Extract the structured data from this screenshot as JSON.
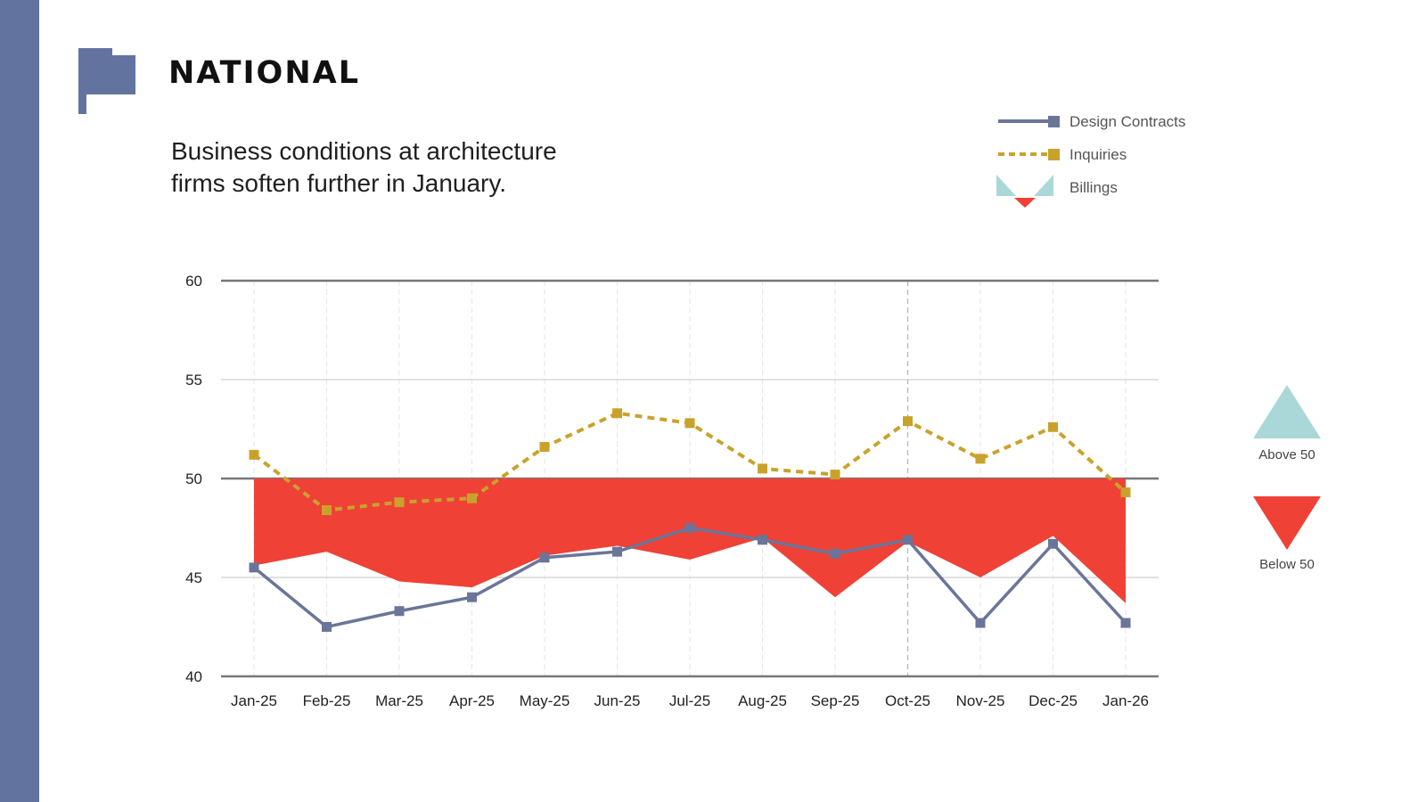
{
  "header": {
    "title": "NATIONAL",
    "subtitle_lines": [
      "Business conditions at architecture",
      "firms soften further in January."
    ]
  },
  "legend": {
    "items": [
      {
        "label": "Design Contracts",
        "icon": "solid-line-square-marker",
        "color": "#6a7599"
      },
      {
        "label": "Inquiries",
        "icon": "dashed-line-square-marker",
        "color": "#c9a22c"
      },
      {
        "label": "Billings",
        "icon": "above-below-triangles",
        "color": "#ef4136"
      }
    ]
  },
  "side_legend": {
    "above_label": "Above 50",
    "below_label": "Below 50",
    "above_color": "#aad8d8",
    "below_color": "#ef4136"
  },
  "colors": {
    "sidebar": "#6373a0",
    "design_contracts": "#6a7599",
    "inquiries": "#c9a22c",
    "billings_below": "#ef4136",
    "billings_above": "#aad8d8"
  },
  "chart_data": {
    "type": "line",
    "categories": [
      "Jan-25",
      "Feb-25",
      "Mar-25",
      "Apr-25",
      "May-25",
      "Jun-25",
      "Jul-25",
      "Aug-25",
      "Sep-25",
      "Oct-25",
      "Nov-25",
      "Dec-25",
      "Jan-26"
    ],
    "ylim": [
      40,
      60
    ],
    "yticks": [
      40,
      45,
      50,
      55,
      60
    ],
    "baseline": 50,
    "grid": true,
    "legend_position": "top-right",
    "series": [
      {
        "name": "Design Contracts",
        "style": "solid",
        "values": [
          45.5,
          42.5,
          43.3,
          44.0,
          46.0,
          46.3,
          47.5,
          46.9,
          46.2,
          46.9,
          42.7,
          46.7,
          42.7
        ]
      },
      {
        "name": "Inquiries",
        "style": "dashed",
        "values": [
          51.2,
          48.4,
          48.8,
          49.0,
          51.6,
          53.3,
          52.8,
          50.5,
          50.2,
          52.9,
          51.0,
          52.6,
          49.3
        ]
      },
      {
        "name": "Billings",
        "style": "area-vs-50",
        "values": [
          45.6,
          46.3,
          44.8,
          44.5,
          46.1,
          46.6,
          45.9,
          47.0,
          44.0,
          46.8,
          45.0,
          47.1,
          43.7
        ]
      }
    ]
  }
}
